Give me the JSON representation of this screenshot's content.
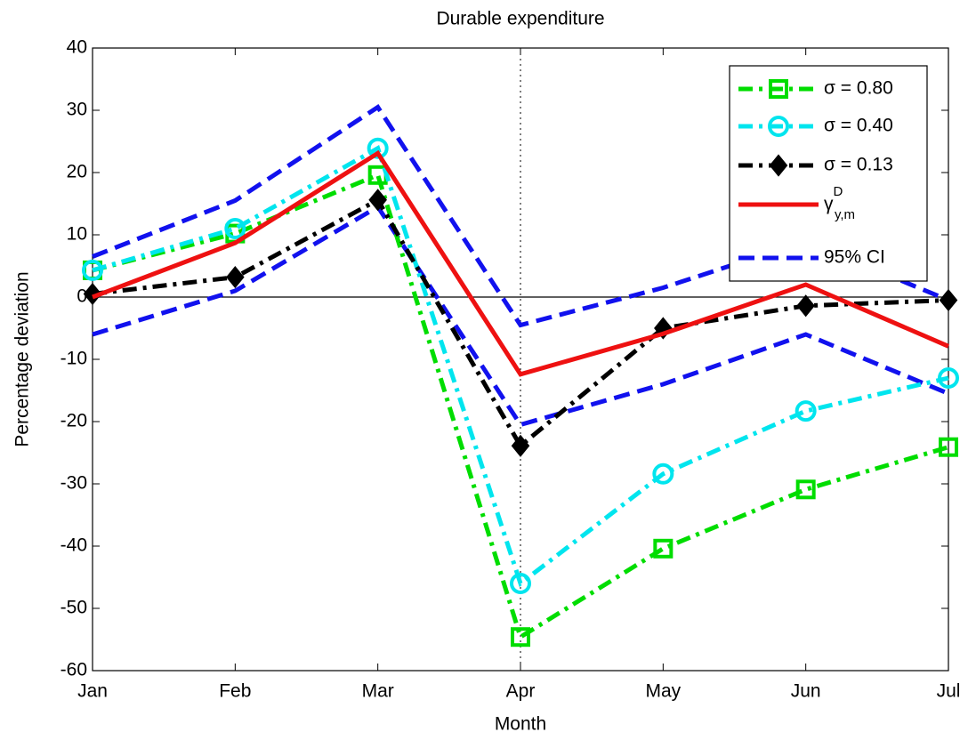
{
  "chart_data": {
    "type": "line",
    "title": "Durable expenditure",
    "xlabel": "Month",
    "ylabel": "Percentage deviation",
    "categories": [
      "Jan",
      "Feb",
      "Mar",
      "Apr",
      "May",
      "Jun",
      "Jul"
    ],
    "ylim": [
      -60,
      40
    ],
    "yticks": [
      -60,
      -50,
      -40,
      -30,
      -20,
      -10,
      0,
      10,
      20,
      30,
      40
    ],
    "hline": 0,
    "vline": "Apr",
    "legend": "upper right",
    "series": [
      {
        "name": "σ = 0.80",
        "color": "#00dd00",
        "style": "dashdot",
        "marker": "square",
        "values": [
          4.3,
          10.2,
          19.6,
          -54.6,
          -40.4,
          -30.9,
          -24.1
        ]
      },
      {
        "name": "σ = 0.40",
        "color": "#00e5ee",
        "style": "dashdot",
        "marker": "circle",
        "values": [
          4.3,
          11,
          23.9,
          -46,
          -28.4,
          -18.3,
          -13
        ]
      },
      {
        "name": "σ = 0.13",
        "color": "#000000",
        "style": "dashdot",
        "marker": "diamond",
        "values": [
          0.5,
          3.2,
          15.6,
          -23.9,
          -5,
          -1.4,
          -0.5
        ]
      },
      {
        "name": "γ",
        "name_sup": "D",
        "name_sub": "y,m",
        "color": "#ee1111",
        "style": "solid",
        "values": [
          0,
          8.7,
          23.1,
          -12.4,
          -5.9,
          2,
          -7.9
        ]
      },
      {
        "name": "95% CI",
        "color": "#1111ee",
        "style": "dashed",
        "upper": [
          6.5,
          15.5,
          30.5,
          -4.5,
          1.5,
          9,
          -0.5
        ],
        "lower": [
          -6,
          1,
          14.5,
          -20.5,
          -14,
          -6,
          -15.5
        ]
      }
    ]
  }
}
